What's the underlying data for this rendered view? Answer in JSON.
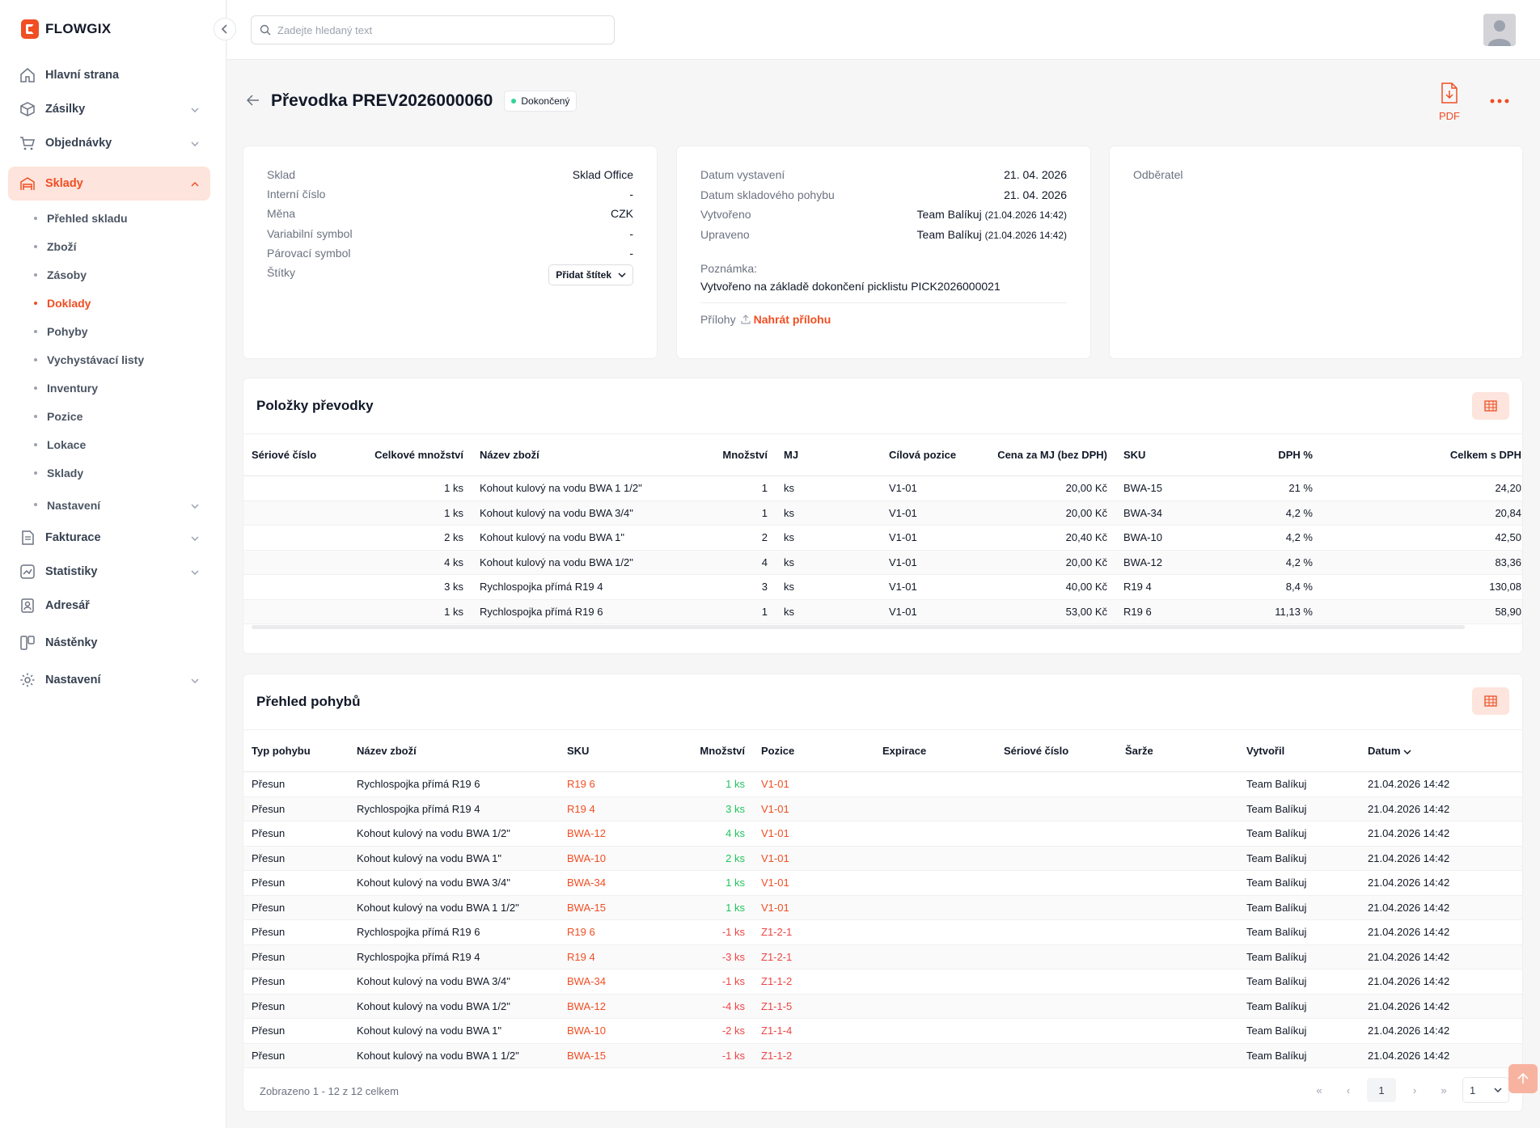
{
  "app": {
    "name": "FLOWGIX"
  },
  "search": {
    "placeholder": "Zadejte hledaný text"
  },
  "sidebar": {
    "items": [
      {
        "label": "Hlavní strana",
        "icon": "home-icon",
        "chevron": false
      },
      {
        "label": "Zásilky",
        "icon": "box-icon",
        "chevron": true
      },
      {
        "label": "Objednávky",
        "icon": "cart-icon",
        "chevron": true
      },
      {
        "label": "Sklady",
        "icon": "warehouse-icon",
        "chevron": true,
        "active": true
      }
    ],
    "sklady_sub": [
      {
        "label": "Přehled skladu"
      },
      {
        "label": "Zboží"
      },
      {
        "label": "Zásoby"
      },
      {
        "label": "Doklady",
        "active": true
      },
      {
        "label": "Pohyby"
      },
      {
        "label": "Vychystávací listy"
      },
      {
        "label": "Inventury"
      },
      {
        "label": "Pozice"
      },
      {
        "label": "Lokace"
      },
      {
        "label": "Sklady"
      },
      {
        "label": "Nastavení",
        "chevron": true
      }
    ],
    "items_bottom": [
      {
        "label": "Fakturace",
        "icon": "invoice-icon",
        "chevron": true
      },
      {
        "label": "Statistiky",
        "icon": "chart-icon",
        "chevron": true
      },
      {
        "label": "Adresář",
        "icon": "contacts-icon",
        "chevron": false
      },
      {
        "label": "Nástěnky",
        "icon": "board-icon",
        "chevron": false
      },
      {
        "label": "Nastavení",
        "icon": "gear-icon",
        "chevron": true
      }
    ]
  },
  "page": {
    "title": "Převodka PREV2026000060",
    "status": "Dokončený",
    "pdf_label": "PDF"
  },
  "info_left": [
    {
      "k": "Sklad",
      "v": "Sklad Office"
    },
    {
      "k": "Interní číslo",
      "v": "-"
    },
    {
      "k": "Měna",
      "v": "CZK"
    },
    {
      "k": "Variabilní symbol",
      "v": "-"
    },
    {
      "k": "Párovací symbol",
      "v": "-"
    },
    {
      "k": "Štítky",
      "v": ""
    }
  ],
  "add_tag_label": "Přidat štítek",
  "info_mid": [
    {
      "k": "Datum vystavení",
      "v": "21. 04. 2026",
      "sub": ""
    },
    {
      "k": "Datum skladového pohybu",
      "v": "21. 04. 2026",
      "sub": ""
    },
    {
      "k": "Vytvořeno",
      "v": "Team Balíkuj",
      "sub": "(21.04.2026 14:42)"
    },
    {
      "k": "Upraveno",
      "v": "Team Balíkuj",
      "sub": "(21.04.2026 14:42)"
    }
  ],
  "note": {
    "label": "Poznámka:",
    "text": "Vytvořeno na základě dokončení picklistu PICK2026000021"
  },
  "attachments": {
    "label": "Přílohy",
    "upload": "Nahrát přílohu"
  },
  "customer": {
    "label": "Odběratel"
  },
  "items_section": {
    "title": "Položky převodky",
    "columns": [
      "Sériové číslo",
      "Celkové množství",
      "Název zboží",
      "Množství",
      "MJ",
      "Cílová pozice",
      "Cena za MJ (bez DPH)",
      "SKU",
      "DPH %",
      "Celkem s DPH"
    ],
    "rows": [
      [
        "",
        "1 ks",
        "Kohout kulový na vodu BWA 1 1/2\"",
        "1",
        "ks",
        "V1-01",
        "20,00 Kč",
        "BWA-15",
        "21 %",
        "24,20"
      ],
      [
        "",
        "1 ks",
        "Kohout kulový na vodu BWA 3/4\"",
        "1",
        "ks",
        "V1-01",
        "20,00 Kč",
        "BWA-34",
        "4,2 %",
        "20,84"
      ],
      [
        "",
        "2 ks",
        "Kohout kulový na vodu BWA 1\"",
        "2",
        "ks",
        "V1-01",
        "20,40 Kč",
        "BWA-10",
        "4,2 %",
        "42,50"
      ],
      [
        "",
        "4 ks",
        "Kohout kulový na vodu BWA 1/2\"",
        "4",
        "ks",
        "V1-01",
        "20,00 Kč",
        "BWA-12",
        "4,2 %",
        "83,36"
      ],
      [
        "",
        "3 ks",
        "Rychlospojka přímá R19 4",
        "3",
        "ks",
        "V1-01",
        "40,00 Kč",
        "R19 4",
        "8,4 %",
        "130,08"
      ],
      [
        "",
        "1 ks",
        "Rychlospojka přímá R19 6",
        "1",
        "ks",
        "V1-01",
        "53,00 Kč",
        "R19 6",
        "11,13 %",
        "58,90"
      ]
    ]
  },
  "moves_section": {
    "title": "Přehled pohybů",
    "columns": [
      "Typ pohybu",
      "Název zboží",
      "SKU",
      "Množství",
      "Pozice",
      "Expirace",
      "Sériové číslo",
      "Šarže",
      "Vytvořil",
      "Datum"
    ],
    "rows": [
      [
        "Přesun",
        "Rychlospojka přímá R19 6",
        "R19 6",
        "1 ks",
        "V1-01",
        "",
        "",
        "",
        "Team Balíkuj",
        "21.04.2026 14:42"
      ],
      [
        "Přesun",
        "Rychlospojka přímá R19 4",
        "R19 4",
        "3 ks",
        "V1-01",
        "",
        "",
        "",
        "Team Balíkuj",
        "21.04.2026 14:42"
      ],
      [
        "Přesun",
        "Kohout kulový na vodu BWA 1/2\"",
        "BWA-12",
        "4 ks",
        "V1-01",
        "",
        "",
        "",
        "Team Balíkuj",
        "21.04.2026 14:42"
      ],
      [
        "Přesun",
        "Kohout kulový na vodu BWA 1\"",
        "BWA-10",
        "2 ks",
        "V1-01",
        "",
        "",
        "",
        "Team Balíkuj",
        "21.04.2026 14:42"
      ],
      [
        "Přesun",
        "Kohout kulový na vodu BWA 3/4\"",
        "BWA-34",
        "1 ks",
        "V1-01",
        "",
        "",
        "",
        "Team Balíkuj",
        "21.04.2026 14:42"
      ],
      [
        "Přesun",
        "Kohout kulový na vodu BWA 1 1/2\"",
        "BWA-15",
        "1 ks",
        "V1-01",
        "",
        "",
        "",
        "Team Balíkuj",
        "21.04.2026 14:42"
      ],
      [
        "Přesun",
        "Rychlospojka přímá R19 6",
        "R19 6",
        "-1 ks",
        "Z1-2-1",
        "",
        "",
        "",
        "Team Balíkuj",
        "21.04.2026 14:42"
      ],
      [
        "Přesun",
        "Rychlospojka přímá R19 4",
        "R19 4",
        "-3 ks",
        "Z1-2-1",
        "",
        "",
        "",
        "Team Balíkuj",
        "21.04.2026 14:42"
      ],
      [
        "Přesun",
        "Kohout kulový na vodu BWA 3/4\"",
        "BWA-34",
        "-1 ks",
        "Z1-1-2",
        "",
        "",
        "",
        "Team Balíkuj",
        "21.04.2026 14:42"
      ],
      [
        "Přesun",
        "Kohout kulový na vodu BWA 1/2\"",
        "BWA-12",
        "-4 ks",
        "Z1-1-5",
        "",
        "",
        "",
        "Team Balíkuj",
        "21.04.2026 14:42"
      ],
      [
        "Přesun",
        "Kohout kulový na vodu BWA 1\"",
        "BWA-10",
        "-2 ks",
        "Z1-1-4",
        "",
        "",
        "",
        "Team Balíkuj",
        "21.04.2026 14:42"
      ],
      [
        "Přesun",
        "Kohout kulový na vodu BWA 1 1/2\"",
        "BWA-15",
        "-1 ks",
        "Z1-1-2",
        "",
        "",
        "",
        "Team Balíkuj",
        "21.04.2026 14:42"
      ]
    ],
    "summary": "Zobrazeno 1 - 12 z 12 celkem",
    "current_page": "1",
    "page_size": "1"
  },
  "colors": {
    "accent": "#f04e23",
    "accent_soft": "#fde4dc",
    "positive": "#22c55e",
    "negative": "#ef4444"
  }
}
